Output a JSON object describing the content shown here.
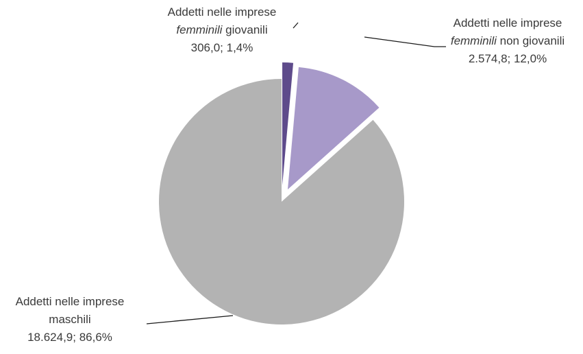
{
  "chart_data": {
    "type": "pie",
    "exploded": true,
    "start_angle_deg": 0,
    "direction": "clockwise",
    "slices": [
      {
        "label_lines": [
          "Addetti nelle imprese",
          "femminili giovanili",
          "306,0; 1,4%"
        ],
        "label_italic_word": "femminili",
        "value": 306.0,
        "value_text": "306,0",
        "percent": 1.4,
        "percent_text": "1,4%",
        "color": "#5e4b8b"
      },
      {
        "label_lines": [
          "Addetti nelle imprese",
          "femminili non giovanili",
          "2.574,8; 12,0%"
        ],
        "label_italic_word": "femminili",
        "value": 2574.8,
        "value_text": "2.574,8",
        "percent": 12.0,
        "percent_text": "12,0%",
        "color": "#a799c9"
      },
      {
        "label_lines": [
          "Addetti nelle imprese",
          "maschili",
          "18.624,9; 86,6%"
        ],
        "label_italic_word": "",
        "value": 18624.9,
        "value_text": "18.624,9",
        "percent": 86.6,
        "percent_text": "86,6%",
        "color": "#b3b3b3"
      }
    ]
  }
}
